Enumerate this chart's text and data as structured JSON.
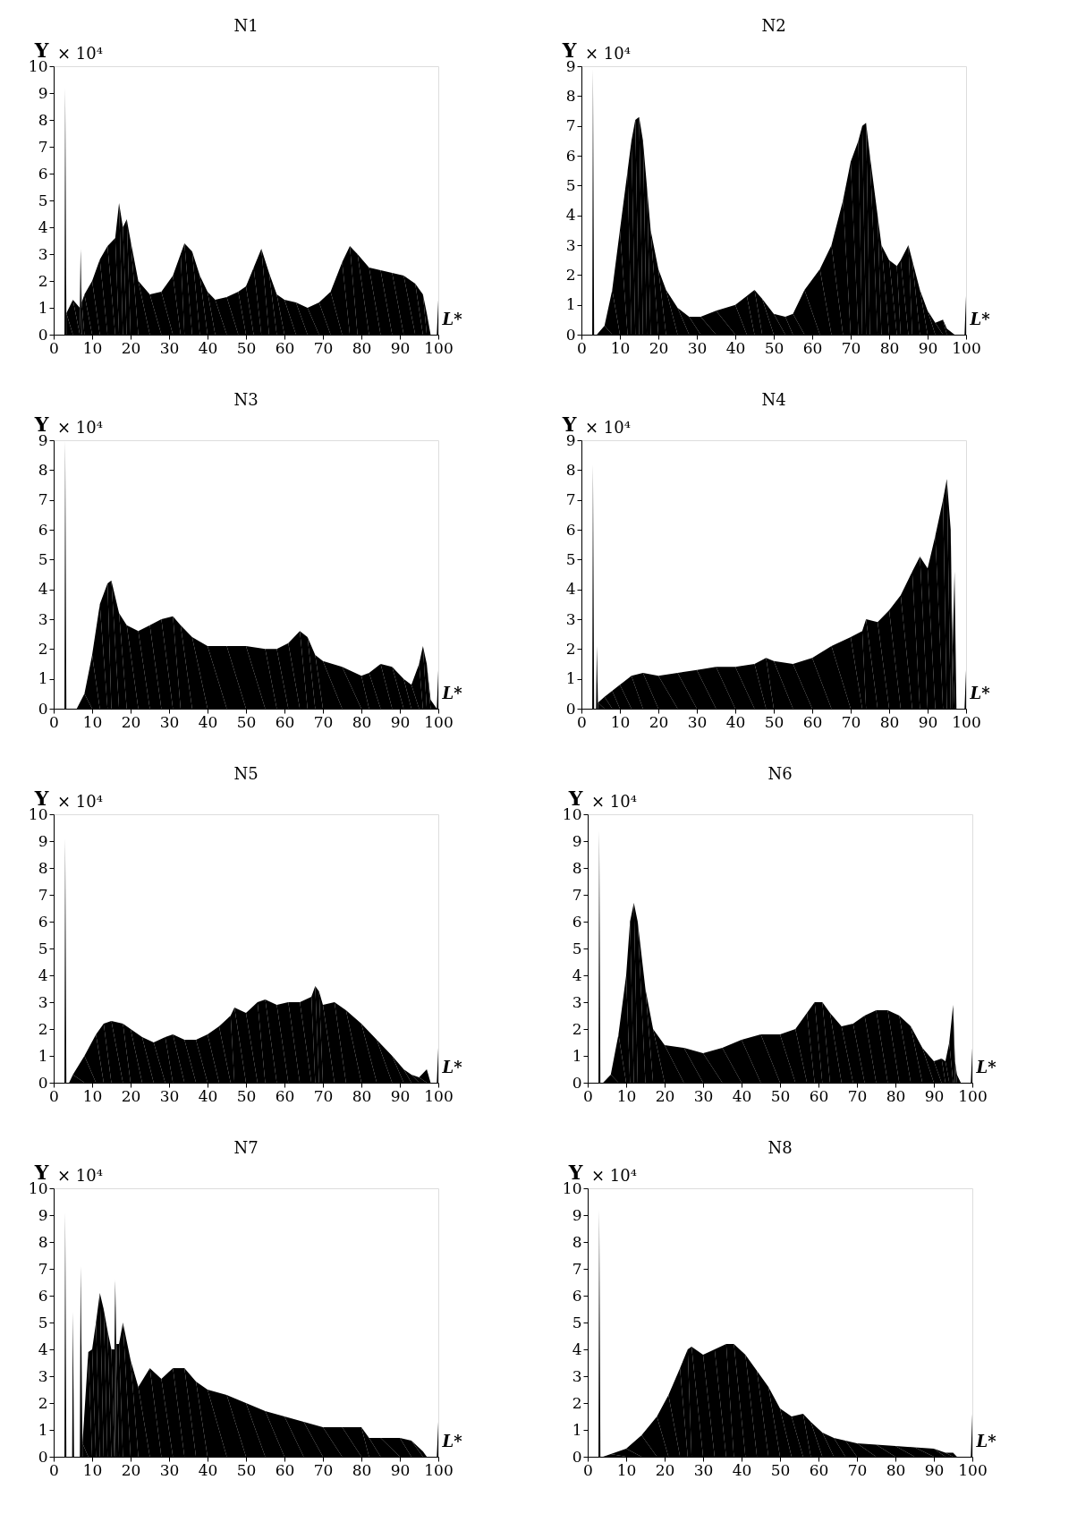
{
  "chart_data": [
    {
      "type": "area",
      "title": "N1",
      "xlabel": "L*",
      "ylabel": "Y",
      "annotations": [
        "× 10⁴"
      ],
      "xlim": [
        0,
        100
      ],
      "ylim": [
        0,
        10
      ],
      "xticks": [
        0,
        10,
        20,
        30,
        40,
        50,
        60,
        70,
        80,
        90,
        100
      ],
      "yticks": [
        0,
        1,
        2,
        3,
        4,
        5,
        6,
        7,
        8,
        9,
        10
      ],
      "grid": false,
      "series": [
        {
          "color": "#000000",
          "x": [
            2.8,
            3,
            3.3,
            5,
            6.8,
            7,
            7.3,
            8,
            10,
            12,
            14,
            16,
            17,
            18,
            19,
            20,
            22,
            25,
            28,
            31,
            33,
            34,
            36,
            38,
            40,
            42,
            45,
            48,
            50,
            52,
            54,
            56,
            58,
            60,
            63,
            66,
            69,
            72,
            75,
            77,
            79,
            82,
            85,
            88,
            91,
            94,
            96,
            97,
            98,
            99.6,
            100
          ],
          "values": [
            0,
            9.2,
            0.8,
            1.3,
            1.0,
            3.2,
            1.2,
            1.5,
            2.0,
            2.8,
            3.3,
            3.6,
            4.9,
            4.0,
            4.3,
            3.5,
            2.0,
            1.5,
            1.6,
            2.2,
            3.0,
            3.4,
            3.1,
            2.2,
            1.6,
            1.3,
            1.4,
            1.6,
            1.8,
            2.5,
            3.2,
            2.3,
            1.5,
            1.3,
            1.2,
            1.0,
            1.2,
            1.6,
            2.7,
            3.3,
            3.0,
            2.5,
            2.4,
            2.3,
            2.2,
            1.9,
            1.5,
            0.8,
            0,
            0,
            1.3
          ]
        }
      ]
    },
    {
      "type": "area",
      "title": "N2",
      "xlabel": "L*",
      "ylabel": "Y",
      "annotations": [
        "× 10⁴"
      ],
      "xlim": [
        0,
        100
      ],
      "ylim": [
        0,
        9
      ],
      "xticks": [
        0,
        10,
        20,
        30,
        40,
        50,
        60,
        70,
        80,
        90,
        100
      ],
      "yticks": [
        0,
        1,
        2,
        3,
        4,
        5,
        6,
        7,
        8,
        9
      ],
      "grid": false,
      "series": [
        {
          "color": "#000000",
          "x": [
            2.8,
            3,
            3.3,
            4,
            6,
            8,
            10,
            12,
            13,
            14,
            15,
            16,
            17,
            18,
            20,
            22,
            25,
            28,
            31,
            35,
            40,
            43,
            45,
            47,
            50,
            53,
            55,
            58,
            62,
            65,
            68,
            70,
            72,
            73,
            74,
            75,
            77,
            78,
            80,
            82,
            83,
            85,
            86,
            88,
            90,
            92,
            94,
            95,
            97,
            99.6,
            100
          ],
          "values": [
            0,
            8.9,
            0,
            0,
            0.3,
            1.5,
            3.5,
            5.5,
            6.5,
            7.2,
            7.3,
            6.5,
            5.0,
            3.5,
            2.2,
            1.5,
            0.9,
            0.6,
            0.6,
            0.8,
            1.0,
            1.3,
            1.5,
            1.2,
            0.7,
            0.6,
            0.7,
            1.5,
            2.2,
            3.0,
            4.5,
            5.8,
            6.5,
            7.0,
            7.1,
            6.0,
            4.0,
            3.0,
            2.5,
            2.3,
            2.5,
            3.0,
            2.5,
            1.5,
            0.8,
            0.4,
            0.5,
            0.2,
            0,
            0,
            1.3
          ]
        }
      ]
    },
    {
      "type": "area",
      "title": "N3",
      "xlabel": "L*",
      "ylabel": "Y",
      "annotations": [
        "× 10⁴"
      ],
      "xlim": [
        0,
        100
      ],
      "ylim": [
        0,
        9
      ],
      "xticks": [
        0,
        10,
        20,
        30,
        40,
        50,
        60,
        70,
        80,
        90,
        100
      ],
      "yticks": [
        0,
        1,
        2,
        3,
        4,
        5,
        6,
        7,
        8,
        9
      ],
      "grid": false,
      "series": [
        {
          "color": "#000000",
          "x": [
            2.8,
            3,
            3.3,
            6,
            8,
            10,
            12,
            14,
            15,
            17,
            19,
            22,
            25,
            28,
            31,
            33,
            36,
            40,
            45,
            50,
            55,
            58,
            61,
            64,
            66,
            68,
            70,
            75,
            80,
            82,
            85,
            88,
            91,
            93,
            95,
            96,
            97,
            98,
            99.6,
            100
          ],
          "values": [
            0,
            9.0,
            0,
            0,
            0.5,
            1.8,
            3.5,
            4.2,
            4.3,
            3.2,
            2.8,
            2.6,
            2.8,
            3.0,
            3.1,
            2.8,
            2.4,
            2.1,
            2.1,
            2.1,
            2.0,
            2.0,
            2.2,
            2.6,
            2.4,
            1.8,
            1.6,
            1.4,
            1.1,
            1.2,
            1.5,
            1.4,
            1.0,
            0.8,
            1.5,
            2.1,
            1.5,
            0.3,
            0,
            1.3
          ]
        }
      ]
    },
    {
      "type": "area",
      "title": "N4",
      "xlabel": "L*",
      "ylabel": "Y",
      "annotations": [
        "× 10⁴"
      ],
      "xlim": [
        0,
        100
      ],
      "ylim": [
        0,
        9
      ],
      "xticks": [
        0,
        10,
        20,
        30,
        40,
        50,
        60,
        70,
        80,
        90,
        100
      ],
      "yticks": [
        0,
        1,
        2,
        3,
        4,
        5,
        6,
        7,
        8,
        9
      ],
      "grid": false,
      "series": [
        {
          "color": "#000000",
          "x": [
            2.8,
            3,
            3.3,
            3.8,
            4,
            4.3,
            6,
            8,
            10,
            13,
            16,
            20,
            25,
            30,
            35,
            40,
            45,
            48,
            50,
            55,
            60,
            65,
            70,
            73,
            74,
            77,
            80,
            83,
            86,
            88,
            90,
            92,
            94,
            95,
            96,
            96.5,
            97,
            97.5,
            99.6,
            100
          ],
          "values": [
            0,
            8.2,
            0,
            0,
            2.1,
            0.2,
            0.4,
            0.6,
            0.8,
            1.1,
            1.2,
            1.1,
            1.2,
            1.3,
            1.4,
            1.4,
            1.5,
            1.7,
            1.6,
            1.5,
            1.7,
            2.1,
            2.4,
            2.6,
            3.0,
            2.9,
            3.3,
            3.8,
            4.6,
            5.1,
            4.7,
            5.8,
            7.0,
            7.7,
            6.0,
            2.0,
            4.6,
            0,
            0,
            1.3
          ]
        }
      ]
    },
    {
      "type": "area",
      "title": "N5",
      "xlabel": "L*",
      "ylabel": "Y",
      "annotations": [
        "× 10⁴"
      ],
      "xlim": [
        0,
        100
      ],
      "ylim": [
        0,
        10
      ],
      "xticks": [
        0,
        10,
        20,
        30,
        40,
        50,
        60,
        70,
        80,
        90,
        100
      ],
      "yticks": [
        0,
        1,
        2,
        3,
        4,
        5,
        6,
        7,
        8,
        9,
        10
      ],
      "grid": false,
      "series": [
        {
          "color": "#000000",
          "x": [
            2.8,
            3,
            3.3,
            4,
            5,
            8,
            11,
            13,
            15,
            18,
            20,
            23,
            26,
            29,
            31,
            34,
            37,
            40,
            43,
            46,
            47,
            50,
            53,
            55,
            58,
            61,
            64,
            67,
            68,
            69,
            70,
            73,
            76,
            80,
            84,
            88,
            91,
            93,
            95,
            97,
            98,
            99.6,
            100
          ],
          "values": [
            0,
            9.1,
            0,
            0,
            0.3,
            1.0,
            1.8,
            2.2,
            2.3,
            2.2,
            2.0,
            1.7,
            1.5,
            1.7,
            1.8,
            1.6,
            1.6,
            1.8,
            2.1,
            2.5,
            2.8,
            2.6,
            3.0,
            3.1,
            2.9,
            3.0,
            3.0,
            3.2,
            3.6,
            3.4,
            2.9,
            3.0,
            2.7,
            2.2,
            1.6,
            1.0,
            0.5,
            0.3,
            0.2,
            0.5,
            0,
            0,
            1.3
          ]
        }
      ]
    },
    {
      "type": "area",
      "title": "N6",
      "xlabel": "L*",
      "ylabel": "Y",
      "annotations": [
        "× 10⁴"
      ],
      "xlim": [
        0,
        100
      ],
      "ylim": [
        0,
        10
      ],
      "xticks": [
        0,
        10,
        20,
        30,
        40,
        50,
        60,
        70,
        80,
        90,
        100
      ],
      "yticks": [
        0,
        1,
        2,
        3,
        4,
        5,
        6,
        7,
        8,
        9,
        10
      ],
      "grid": false,
      "series": [
        {
          "color": "#000000",
          "x": [
            2.8,
            3,
            3.3,
            4,
            6,
            8,
            10,
            11,
            12,
            13,
            15,
            17,
            20,
            25,
            30,
            35,
            40,
            45,
            50,
            54,
            57,
            59,
            61,
            63,
            66,
            69,
            72,
            75,
            78,
            81,
            84,
            87,
            90,
            92,
            93,
            94,
            95,
            95.5,
            96,
            97,
            99.6,
            100
          ],
          "values": [
            0,
            9.4,
            0,
            0,
            0.3,
            1.8,
            4.0,
            6.0,
            6.7,
            6.0,
            3.5,
            2.0,
            1.4,
            1.3,
            1.1,
            1.3,
            1.6,
            1.8,
            1.8,
            2.0,
            2.6,
            3.0,
            3.0,
            2.6,
            2.1,
            2.2,
            2.5,
            2.7,
            2.7,
            2.5,
            2.1,
            1.3,
            0.8,
            0.9,
            0.8,
            1.5,
            2.9,
            0.8,
            0.3,
            0,
            0,
            1.3
          ]
        }
      ]
    },
    {
      "type": "area",
      "title": "N7",
      "xlabel": "L*",
      "ylabel": "Y",
      "annotations": [
        "× 10⁴"
      ],
      "xlim": [
        0,
        100
      ],
      "ylim": [
        0,
        10
      ],
      "xticks": [
        0,
        10,
        20,
        30,
        40,
        50,
        60,
        70,
        80,
        90,
        100
      ],
      "yticks": [
        0,
        1,
        2,
        3,
        4,
        5,
        6,
        7,
        8,
        9,
        10
      ],
      "grid": false,
      "series": [
        {
          "color": "#000000",
          "x": [
            2.8,
            3,
            3.3,
            4.8,
            5,
            5.3,
            6.8,
            7,
            7.5,
            9,
            10,
            11,
            12,
            13,
            14,
            15,
            15.8,
            16,
            16.3,
            17,
            18,
            20,
            22,
            25,
            28,
            31,
            34,
            37,
            40,
            45,
            50,
            55,
            60,
            65,
            70,
            75,
            80,
            82,
            85,
            90,
            93,
            96,
            97,
            99.6,
            100
          ],
          "values": [
            0,
            9.1,
            0,
            0,
            5.4,
            0,
            0,
            7.1,
            0.5,
            3.9,
            4.0,
            5.0,
            6.1,
            5.5,
            4.7,
            4.0,
            4.0,
            6.6,
            4.2,
            4.2,
            5.0,
            3.6,
            2.6,
            3.3,
            2.9,
            3.3,
            3.3,
            2.8,
            2.5,
            2.3,
            2.0,
            1.7,
            1.5,
            1.3,
            1.1,
            1.1,
            1.1,
            0.7,
            0.7,
            0.7,
            0.6,
            0.2,
            0,
            0,
            1.3
          ]
        }
      ]
    },
    {
      "type": "area",
      "title": "N8",
      "xlabel": "L*",
      "ylabel": "Y",
      "annotations": [
        "× 10⁴"
      ],
      "xlim": [
        0,
        100
      ],
      "ylim": [
        0,
        10
      ],
      "xticks": [
        0,
        10,
        20,
        30,
        40,
        50,
        60,
        70,
        80,
        90,
        100
      ],
      "yticks": [
        0,
        1,
        2,
        3,
        4,
        5,
        6,
        7,
        8,
        9,
        10
      ],
      "grid": false,
      "series": [
        {
          "color": "#000000",
          "x": [
            2.8,
            3,
            3.3,
            4,
            6,
            10,
            14,
            18,
            21,
            24,
            26,
            27,
            30,
            33,
            36,
            38,
            41,
            44,
            47,
            50,
            53,
            56,
            58,
            61,
            64,
            67,
            70,
            75,
            80,
            85,
            90,
            93,
            95,
            96,
            99.6,
            100
          ],
          "values": [
            0,
            9.2,
            0,
            0,
            0.1,
            0.3,
            0.8,
            1.5,
            2.3,
            3.3,
            4.0,
            4.1,
            3.8,
            4.0,
            4.2,
            4.2,
            3.8,
            3.2,
            2.6,
            1.8,
            1.5,
            1.6,
            1.3,
            0.9,
            0.7,
            0.6,
            0.5,
            0.45,
            0.4,
            0.35,
            0.3,
            0.15,
            0.15,
            0,
            0,
            1.6
          ]
        }
      ]
    }
  ]
}
